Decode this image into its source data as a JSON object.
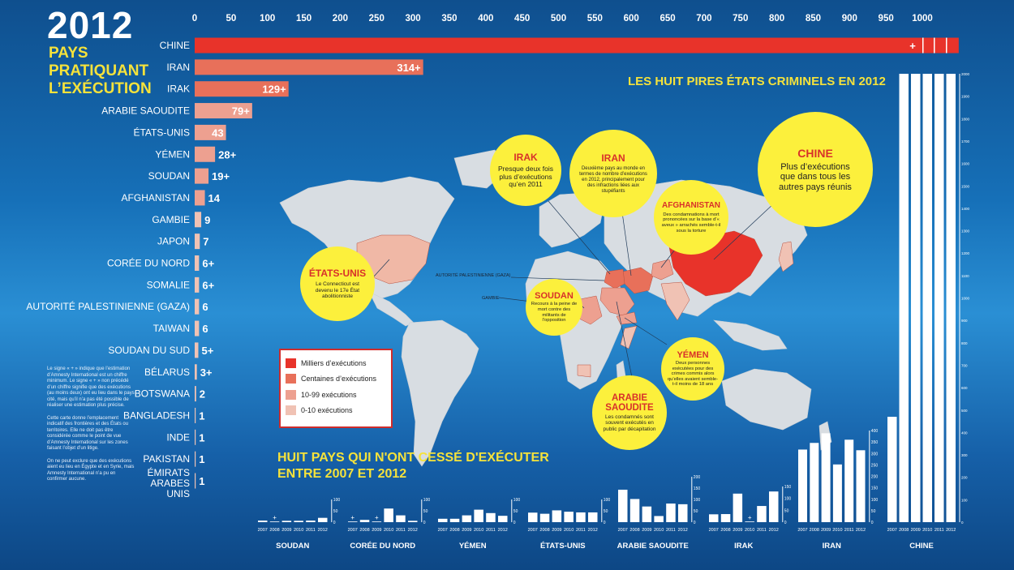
{
  "header": {
    "year": "2012",
    "sub1": "PAYS",
    "sub2": "PRATIQUANT",
    "sub3": "L’EXÉCUTION"
  },
  "colors": {
    "thousands": "#e8332a",
    "hundreds": "#e8705a",
    "tens": "#eda090",
    "units": "#f0c2b4",
    "map_land": "#d8dde2",
    "bubble": "#fcf03c",
    "title_yellow": "#f5e23b"
  },
  "chart_data": [
    {
      "type": "bar",
      "orientation": "horizontal",
      "title": "",
      "xlim": [
        0,
        1000
      ],
      "x_ticks": [
        0,
        50,
        100,
        150,
        200,
        250,
        300,
        350,
        400,
        450,
        500,
        550,
        600,
        650,
        700,
        750,
        800,
        850,
        900,
        950,
        1000
      ],
      "categories": [
        "CHINE",
        "IRAN",
        "IRAK",
        "ARABIE SAOUDITE",
        "ÉTATS-UNIS",
        "YÉMEN",
        "SOUDAN",
        "AFGHANISTAN",
        "GAMBIE",
        "JAPON",
        "CORÉE DU NORD",
        "SOMALIE",
        "AUTORITÉ PALESTINIENNE (GAZA)",
        "TAIWAN",
        "SOUDAN DU SUD",
        "BÉLARUS",
        "BOTSWANA",
        "BANGLADESH",
        "INDE",
        "PAKISTAN",
        "ÉMIRATS ARABES UNIS"
      ],
      "values": [
        1050,
        314,
        129,
        79,
        43,
        28,
        19,
        14,
        9,
        7,
        6,
        6,
        6,
        6,
        5,
        3,
        2,
        1,
        1,
        1,
        1
      ],
      "labels": [
        "+",
        "314+",
        "129+",
        "79+",
        "43",
        "28+",
        "19+",
        "14",
        "9",
        "7",
        "6+",
        "6+",
        "6",
        "6",
        "5+",
        "3+",
        "2",
        "1",
        "1",
        "1",
        "1"
      ]
    },
    {
      "type": "bar",
      "title": "HUIT PAYS QUI N'ONT CESSÉ D'EXÉCUTER ENTRE 2007 ET 2012",
      "years": [
        "2007",
        "2008",
        "2009",
        "2010",
        "2011",
        "2012"
      ],
      "panels": [
        {
          "name": "SOUDAN",
          "ymax": 100,
          "ticks": [
            "0",
            "50",
            "100"
          ],
          "values": [
            7,
            2,
            6,
            6,
            7,
            19
          ],
          "marks": [
            "",
            "+",
            "",
            "",
            "",
            ""
          ]
        },
        {
          "name": "CORÉE DU NORD",
          "ymax": 100,
          "ticks": [
            "0",
            "50",
            "100"
          ],
          "values": [
            2,
            10,
            2,
            60,
            30,
            6
          ],
          "marks": [
            "+",
            "",
            "+",
            "",
            "",
            ""
          ]
        },
        {
          "name": "YÉMEN",
          "ymax": 100,
          "ticks": [
            "0",
            "50",
            "100"
          ],
          "values": [
            15,
            15,
            30,
            55,
            40,
            28
          ],
          "marks": [
            "",
            "",
            "",
            "",
            "",
            ""
          ]
        },
        {
          "name": "ÉTATS-UNIS",
          "ymax": 100,
          "ticks": [
            "0",
            "50",
            "100"
          ],
          "values": [
            42,
            37,
            52,
            46,
            43,
            43
          ],
          "marks": [
            "",
            "",
            "",
            "",
            "",
            ""
          ]
        },
        {
          "name": "ARABIE SAOUDITE",
          "ymax": 200,
          "ticks": [
            "0",
            "50",
            "100",
            "150",
            "200"
          ],
          "values": [
            143,
            102,
            69,
            27,
            82,
            79
          ],
          "marks": [
            "",
            "",
            "",
            "",
            "",
            ""
          ]
        },
        {
          "name": "IRAK",
          "ymax": 150,
          "ticks": [
            "0",
            "50",
            "100",
            "150"
          ],
          "values": [
            33,
            34,
            120,
            1,
            68,
            129
          ],
          "marks": [
            "",
            "",
            "",
            "+",
            "",
            ""
          ]
        },
        {
          "name": "IRAN",
          "ymax": 400,
          "ticks": [
            "0",
            "50",
            "100",
            "150",
            "200",
            "250",
            "300",
            "350",
            "400"
          ],
          "values": [
            317,
            346,
            388,
            252,
            360,
            314
          ],
          "marks": [
            "",
            "",
            "",
            "",
            "",
            ""
          ]
        },
        {
          "name": "CHINE",
          "ymax": 2000,
          "ticks": [
            "0",
            "100",
            "200",
            "300",
            "400",
            "500",
            "600",
            "700",
            "800",
            "900",
            "1000",
            "1100",
            "1200",
            "1300",
            "1400",
            "1500",
            "1600",
            "1700",
            "1800",
            "1900",
            "2000"
          ],
          "values": [
            470,
            2000,
            2000,
            2000,
            2000,
            2000
          ],
          "marks": [
            "",
            "",
            "",
            "",
            "",
            ""
          ]
        }
      ]
    }
  ],
  "map": {
    "title": "LES HUIT PIRES ÉTATS CRIMINELS EN 2012",
    "small_labels": {
      "gaza": "AUTORITÉ PALESTINIENNE (GAZA)",
      "gambie": "GAMBIE"
    },
    "legend": [
      "Milliers d’exécutions",
      "Centaines d’exécutions",
      "10-99 exécutions",
      "0-10 exécutions"
    ],
    "bubbles": {
      "irak": {
        "title": "IRAK",
        "text": "Presque deux fois plus d’exécutions qu’en 2011"
      },
      "iran": {
        "title": "IRAN",
        "text": "Deuxième pays au monde en termes de nombre d’exécutions en 2012, principalement pour des infractions liées aux stupéfiants"
      },
      "chine": {
        "title": "CHINE",
        "text": "Plus d’exécutions que dans tous les autres pays réunis"
      },
      "afghanistan": {
        "title": "AFGHANISTAN",
        "text": "Des condamnations à mort prononcées sur la base d’« aveux » arrachés semble-t-il sous la torture"
      },
      "etatsunis": {
        "title": "ÉTATS-UNIS",
        "text": "Le Connecticut est devenu le 17e État abolitionniste"
      },
      "soudan": {
        "title": "SOUDAN",
        "text": "Recours à la peine de mort contre des militants de l’opposition"
      },
      "yemen": {
        "title": "YÉMEN",
        "text": "Deux personnes exécutées pour des crimes commis alors qu’elles avaient semble-t-il moins de 18 ans"
      },
      "arabie": {
        "title": "ARABIE SAOUDITE",
        "text": "Les condamnés sont souvent exécutés en public par décapitation"
      }
    }
  },
  "notes": [
    "Le signe « + » indique que l’estimation d’Amnesty International est un chiffre minimum. Le signe « + » non précédé d’un chiffre signifie que des exécutions (au moins deux) ont eu lieu dans le pays cité, mais qu’il n’a pas été possible de réaliser une estimation plus précise.",
    "Cette carte donne l’emplacement indicatif des frontières et des États ou territoires. Elle ne doit pas être considérée comme le point de vue d’Amnesty International sur les zones faisant l’objet d’un litige.",
    "On ne peut exclure que des exécutions aient eu lieu en Égypte et en Syrie, mais Amnesty International n’a pu en confirmer aucune."
  ]
}
